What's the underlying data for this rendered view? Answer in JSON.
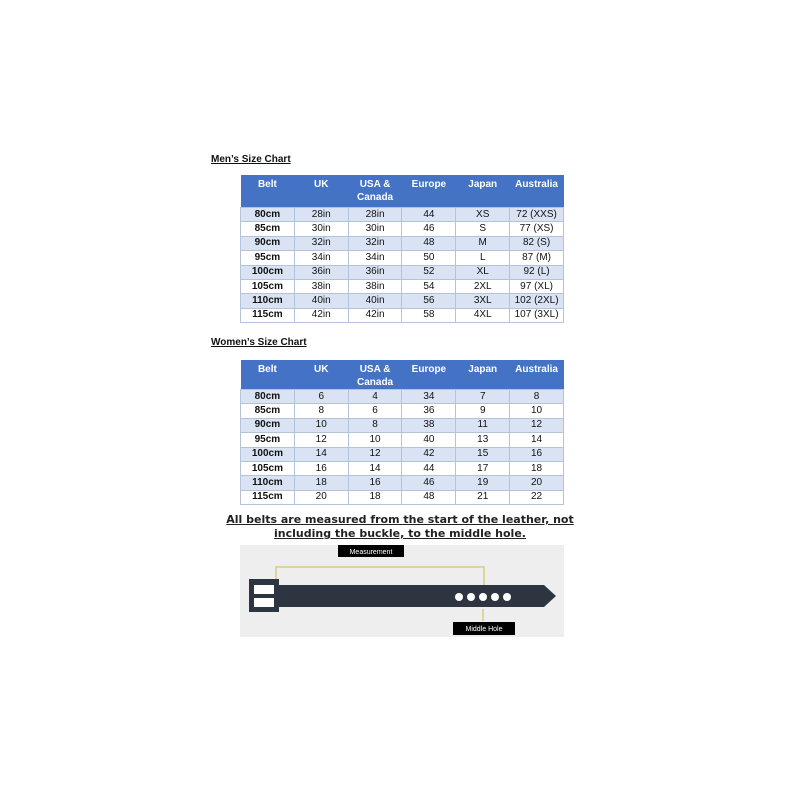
{
  "mens": {
    "title": "Men’s Size Chart",
    "headers": [
      "Belt",
      "UK",
      "USA & Canada",
      "Europe",
      "Japan",
      "Australia"
    ],
    "rows": [
      [
        "80cm",
        "28in",
        "28in",
        "44",
        "XS",
        "72 (XXS)"
      ],
      [
        "85cm",
        "30in",
        "30in",
        "46",
        "S",
        "77 (XS)"
      ],
      [
        "90cm",
        "32in",
        "32in",
        "48",
        "M",
        "82 (S)"
      ],
      [
        "95cm",
        "34in",
        "34in",
        "50",
        "L",
        "87 (M)"
      ],
      [
        "100cm",
        "36in",
        "36in",
        "52",
        "XL",
        "92 (L)"
      ],
      [
        "105cm",
        "38in",
        "38in",
        "54",
        "2XL",
        "97 (XL)"
      ],
      [
        "110cm",
        "40in",
        "40in",
        "56",
        "3XL",
        "102 (2XL)"
      ],
      [
        "115cm",
        "42in",
        "42in",
        "58",
        "4XL",
        "107 (3XL)"
      ]
    ]
  },
  "womens": {
    "title": "Women’s Size Chart",
    "headers": [
      "Belt",
      "UK",
      "USA & Canada",
      "Europe",
      "Japan",
      "Australia"
    ],
    "rows": [
      [
        "80cm",
        "6",
        "4",
        "34",
        "7",
        "8"
      ],
      [
        "85cm",
        "8",
        "6",
        "36",
        "9",
        "10"
      ],
      [
        "90cm",
        "10",
        "8",
        "38",
        "11",
        "12"
      ],
      [
        "95cm",
        "12",
        "10",
        "40",
        "13",
        "14"
      ],
      [
        "100cm",
        "14",
        "12",
        "42",
        "15",
        "16"
      ],
      [
        "105cm",
        "16",
        "14",
        "44",
        "17",
        "18"
      ],
      [
        "110cm",
        "18",
        "16",
        "46",
        "19",
        "20"
      ],
      [
        "115cm",
        "20",
        "18",
        "48",
        "21",
        "22"
      ]
    ]
  },
  "note": "All belts are measured from the start of the leather, not including the buckle, to the middle hole.",
  "diagram": {
    "measurement_label": "Measurement",
    "middle_hole_label": "Middle Hole"
  },
  "colors": {
    "header": "#4472c4",
    "alt_row": "#dae3f3",
    "belt": "#2d3540",
    "guide": "#d8cc80"
  }
}
